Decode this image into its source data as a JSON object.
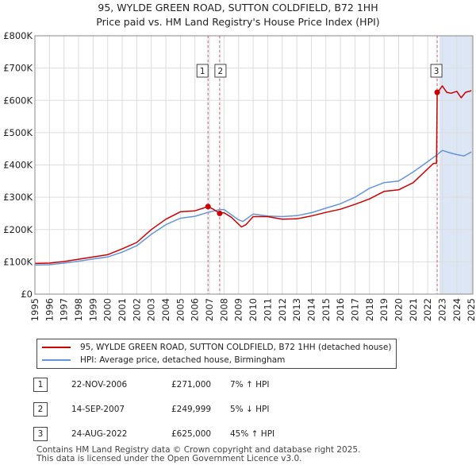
{
  "title_line1": "95, WYLDE GREEN ROAD, SUTTON COLDFIELD, B72 1HH",
  "title_line2": "Price paid vs. HM Land Registry's House Price Index (HPI)",
  "colors": {
    "property": "#cc0000",
    "hpi": "#6495d8",
    "shade": "#dde6f5",
    "vline": "#dd6666",
    "grid": "#dddddd"
  },
  "chart_data": {
    "type": "line",
    "title": "Price paid vs. HM Land Registry's House Price Index (HPI)",
    "xlabel": "",
    "ylabel": "",
    "xlim": [
      1995,
      2025.1
    ],
    "ylim": [
      0,
      800000
    ],
    "y_ticks": [
      0,
      100000,
      200000,
      300000,
      400000,
      500000,
      600000,
      700000,
      800000
    ],
    "y_tick_labels": [
      "£0",
      "£100K",
      "£200K",
      "£300K",
      "£400K",
      "£500K",
      "£600K",
      "£700K",
      "£800K"
    ],
    "x_ticks": [
      1995,
      1996,
      1997,
      1998,
      1999,
      2000,
      2001,
      2002,
      2003,
      2004,
      2005,
      2006,
      2007,
      2008,
      2009,
      2010,
      2011,
      2012,
      2013,
      2014,
      2015,
      2016,
      2017,
      2018,
      2019,
      2020,
      2021,
      2022,
      2023,
      2024,
      2025
    ],
    "x_tick_labels": [
      "1995",
      "1996",
      "1997",
      "1998",
      "1999",
      "2000",
      "2001",
      "2002",
      "2003",
      "2004",
      "2005",
      "2006",
      "2007",
      "2008",
      "2009",
      "2010",
      "2011",
      "2012",
      "2013",
      "2014",
      "2015",
      "2016",
      "2017",
      "2018",
      "2019",
      "2020",
      "2021",
      "2022",
      "2023",
      "2024",
      "2025"
    ],
    "forecast_region": [
      2022.8,
      2025.1
    ],
    "series": [
      {
        "name": "95, WYLDE GREEN ROAD, SUTTON COLDFIELD, B72 1HH (detached house)",
        "color": "#cc0000",
        "x": [
          1995,
          1996,
          1997,
          1998,
          1999,
          2000,
          2001,
          2002,
          2003,
          2004,
          2005,
          2006,
          2006.9,
          2007.3,
          2007.7,
          2008,
          2008.5,
          2009.2,
          2009.5,
          2010,
          2011,
          2012,
          2013,
          2014,
          2015,
          2016,
          2017,
          2018,
          2019,
          2020,
          2021,
          2021.7,
          2022.4,
          2022.6,
          2022.65,
          2022.7,
          2023,
          2023.3,
          2023.6,
          2024,
          2024.3,
          2024.6,
          2025
        ],
        "y": [
          95000,
          96000,
          101000,
          108000,
          115000,
          122000,
          140000,
          160000,
          200000,
          232000,
          255000,
          258000,
          271000,
          262000,
          249999,
          252000,
          238000,
          208000,
          215000,
          240000,
          240000,
          232000,
          233000,
          242000,
          253000,
          263000,
          278000,
          295000,
          318000,
          323000,
          345000,
          375000,
          405000,
          405000,
          625000,
          625000,
          645000,
          625000,
          622000,
          628000,
          608000,
          625000,
          630000
        ]
      },
      {
        "name": "HPI: Average price, detached house, Birmingham",
        "color": "#6495d8",
        "x": [
          1995,
          1996,
          1997,
          1998,
          1999,
          2000,
          2001,
          2002,
          2003,
          2004,
          2005,
          2006,
          2006.9,
          2007.7,
          2008,
          2009,
          2009.3,
          2010,
          2011,
          2012,
          2013,
          2014,
          2015,
          2016,
          2017,
          2018,
          2019,
          2020,
          2021,
          2022,
          2022.6,
          2023,
          2023.5,
          2024,
          2024.5,
          2025
        ],
        "y": [
          90000,
          91000,
          96000,
          102000,
          109000,
          115000,
          130000,
          150000,
          185000,
          215000,
          235000,
          241000,
          253000,
          262000,
          262000,
          230000,
          225000,
          248000,
          242000,
          240000,
          243000,
          252000,
          266000,
          280000,
          300000,
          328000,
          345000,
          350000,
          378000,
          410000,
          430000,
          445000,
          438000,
          432000,
          428000,
          440000
        ]
      }
    ],
    "sale_points": [
      {
        "label": "1",
        "x": 2006.9,
        "y": 271000
      },
      {
        "label": "2",
        "x": 2007.7,
        "y": 249999
      },
      {
        "label": "3",
        "x": 2022.65,
        "y": 625000
      }
    ]
  },
  "legend": {
    "property": "95, WYLDE GREEN ROAD, SUTTON COLDFIELD, B72 1HH (detached house)",
    "hpi": "HPI: Average price, detached house, Birmingham"
  },
  "transactions": [
    {
      "num": "1",
      "date": "22-NOV-2006",
      "price": "£271,000",
      "hpi": "7% ↑ HPI"
    },
    {
      "num": "2",
      "date": "14-SEP-2007",
      "price": "£249,999",
      "hpi": "5% ↓ HPI"
    },
    {
      "num": "3",
      "date": "24-AUG-2022",
      "price": "£625,000",
      "hpi": "45% ↑ HPI"
    }
  ],
  "footer_line1": "Contains HM Land Registry data © Crown copyright and database right 2025.",
  "footer_line2": "This data is licensed under the Open Government Licence v3.0."
}
